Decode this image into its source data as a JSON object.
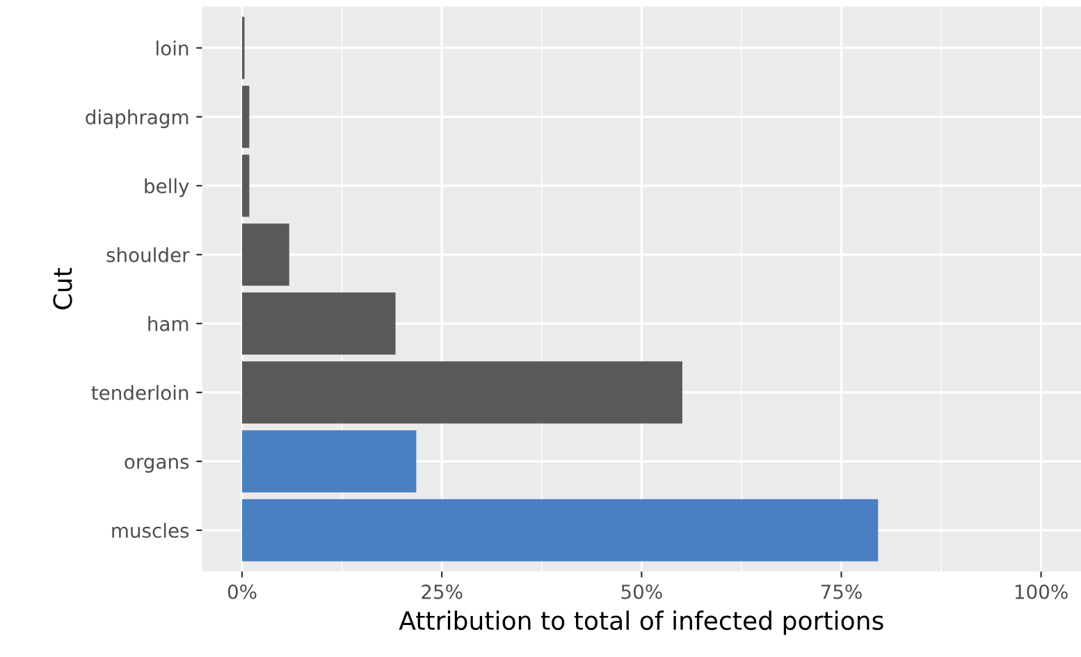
{
  "chart_data": {
    "type": "bar",
    "orientation": "horizontal",
    "xlabel": "Attribution to total of infected portions",
    "ylabel": "Cut",
    "categories": [
      "loin",
      "diaphragm",
      "belly",
      "shoulder",
      "ham",
      "tenderloin",
      "organs",
      "muscles"
    ],
    "values": [
      0.3,
      0.9,
      0.9,
      5.9,
      19.2,
      55.1,
      21.8,
      79.6
    ],
    "colors": [
      "#595959",
      "#595959",
      "#595959",
      "#595959",
      "#595959",
      "#595959",
      "#4a7fc1",
      "#4a7fc1"
    ],
    "xlim": [
      -5,
      105
    ],
    "xticks": [
      {
        "value": 0,
        "label": "0%"
      },
      {
        "value": 25,
        "label": "25%"
      },
      {
        "value": 50,
        "label": "50%"
      },
      {
        "value": 75,
        "label": "75%"
      },
      {
        "value": 100,
        "label": "100%"
      }
    ],
    "grid": true
  }
}
